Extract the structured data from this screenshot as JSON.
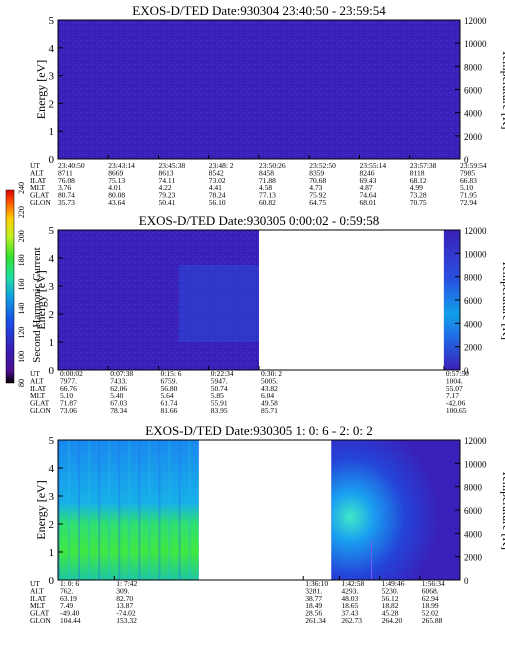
{
  "colorbar": {
    "label": "Second Harmonic Current",
    "ticks": [
      "240",
      "220",
      "200",
      "180",
      "160",
      "140",
      "120",
      "100",
      "80"
    ]
  },
  "chart_data": [
    {
      "type": "heatmap",
      "title": "EXOS-D/TED   Date:930304  23:40:50 - 23:59:54",
      "ylabel": "Energy [eV]",
      "ylabel_right": "Temperature [K]",
      "ylim": [
        0,
        5
      ],
      "yticks": [
        "0",
        "1",
        "2",
        "3",
        "4",
        "5"
      ],
      "y2lim": [
        0,
        12000
      ],
      "y2ticks": [
        "0",
        "2000",
        "4000",
        "6000",
        "8000",
        "10000",
        "12000"
      ],
      "row_labels": [
        "UT",
        "ALT",
        "ILAT",
        "MLT",
        "GLAT",
        "GLON"
      ],
      "columns": [
        [
          "23:40:50",
          "8711",
          "76.08",
          "3.76",
          "80.74",
          "35.73"
        ],
        [
          "23:43:14",
          "8669",
          "75.13",
          "4.01",
          "80.08",
          "43.64"
        ],
        [
          "23:45:38",
          "8613",
          "74.11",
          "4.22",
          "79.23",
          "50.41"
        ],
        [
          "23:48: 2",
          "8542",
          "73.02",
          "4.41",
          "78.24",
          "56.10"
        ],
        [
          "23:50:26",
          "8458",
          "71.88",
          "4.58",
          "77.13",
          "60.82"
        ],
        [
          "23:52:50",
          "8359",
          "70.68",
          "4.73",
          "75.92",
          "64.75"
        ],
        [
          "23:55:14",
          "8246",
          "69.43",
          "4.87",
          "74.64",
          "68.01"
        ],
        [
          "23:57:38",
          "8118",
          "68.12",
          "4.99",
          "73.28",
          "70.75"
        ],
        [
          "23:59:54",
          "7985",
          "66.83",
          "5.10",
          "71.95",
          "72.94"
        ]
      ],
      "data_segments": [
        {
          "from": 0.0,
          "to": 1.0,
          "fill": "#3a1fb8"
        }
      ]
    },
    {
      "type": "heatmap",
      "title": "EXOS-D/TED   Date:930305  0:00:02 - 0:59:58",
      "ylabel": "Energy [eV]",
      "ylabel_right": "Temperature [K]",
      "ylim": [
        0,
        5
      ],
      "yticks": [
        "0",
        "1",
        "2",
        "3",
        "4",
        "5"
      ],
      "y2lim": [
        0,
        12000
      ],
      "y2ticks": [
        "0",
        "2000",
        "4000",
        "6000",
        "8000",
        "10000",
        "12000"
      ],
      "row_labels": [
        "UT",
        "ALT",
        "ILAT",
        "MLT",
        "GLAT",
        "GLON"
      ],
      "columns": [
        [
          "0:00:02",
          "7977.",
          "66.76",
          "5.10",
          "71.87",
          "73.06"
        ],
        [
          "0:07:38",
          "7433.",
          "62.06",
          "5.40",
          "67.03",
          "78.34"
        ],
        [
          "0:15: 6",
          "6759.",
          "56.80",
          "5.64",
          "61.74",
          "81.66"
        ],
        [
          "0:22:34",
          "5947.",
          "50.74",
          "5.85",
          "55.91",
          "83.95"
        ],
        [
          "0:30: 2",
          "5005.",
          "43.82",
          "6.04",
          "49.58",
          "85.71"
        ],
        [
          "0:57:50",
          "1004.",
          "55.07",
          "7.17",
          "-42.06",
          "100.65"
        ]
      ],
      "data_segments": [
        {
          "from": 0.0,
          "to": 0.5,
          "fill": "#3a1fb8"
        },
        {
          "from": 0.96,
          "to": 1.0,
          "fill": "#2a3fd8"
        }
      ]
    },
    {
      "type": "heatmap",
      "title": "EXOS-D/TED   Date:930305  1: 0: 6 - 2: 0: 2",
      "ylabel": "Energy [eV]",
      "ylabel_right": "Temperature [K]",
      "ylim": [
        0,
        5
      ],
      "yticks": [
        "0",
        "1",
        "2",
        "3",
        "4",
        "5"
      ],
      "y2lim": [
        0,
        12000
      ],
      "y2ticks": [
        "0",
        "2000",
        "4000",
        "6000",
        "8000",
        "10000",
        "12000"
      ],
      "row_labels": [
        "UT",
        "ALT",
        "ILAT",
        "MLT",
        "GLAT",
        "GLON"
      ],
      "columns": [
        [
          "1: 0: 6",
          "762.",
          "63.19",
          "7.49",
          "-49.40",
          "104.44"
        ],
        [
          "1: 7:42",
          "309.",
          "82.70",
          "13.87",
          "-74.02",
          "153.32"
        ],
        [
          "1:36:10",
          "3281.",
          "38.77",
          "18.49",
          "28.56",
          "261.34"
        ],
        [
          "1:42:58",
          "4293.",
          "48.03",
          "18.65",
          "37.43",
          "262.73"
        ],
        [
          "1:49:46",
          "5230.",
          "56.12",
          "18.82",
          "45.28",
          "264.20"
        ],
        [
          "1:56:34",
          "6068.",
          "62.94",
          "18.99",
          "52.02",
          "265.88"
        ]
      ],
      "data_segments": [
        {
          "from": 0.0,
          "to": 0.35,
          "fill": "#1560e8"
        },
        {
          "from": 0.68,
          "to": 1.0,
          "fill": "#3a1fb8"
        }
      ]
    }
  ]
}
